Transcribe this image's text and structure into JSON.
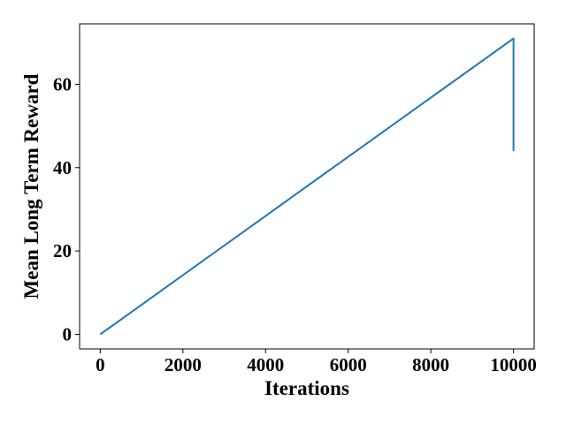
{
  "chart_data": {
    "type": "line",
    "title": "",
    "xlabel": "Iterations",
    "ylabel": "Mean Long Term Reward",
    "xlim": [
      -500,
      10500
    ],
    "ylim": [
      -3.5,
      74.5
    ],
    "xticks": [
      0,
      2000,
      4000,
      6000,
      8000,
      10000
    ],
    "yticks": [
      0,
      20,
      40,
      60
    ],
    "grid": false,
    "legend": "none",
    "series": [
      {
        "color": "#1f77b4",
        "x": [
          0,
          10000,
          10000
        ],
        "y": [
          0,
          71,
          44
        ]
      }
    ]
  }
}
